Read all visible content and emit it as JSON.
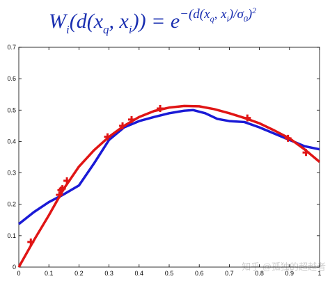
{
  "chart_data": {
    "type": "line",
    "title_parts": [
      "W",
      "i",
      "(d(x",
      "q",
      ", x",
      "i",
      ")) = e",
      "−(d(x",
      "q",
      ", x",
      "i",
      ")/σ",
      "0",
      ")",
      "2"
    ],
    "xlim": [
      0,
      1
    ],
    "xticks": [
      0,
      0.1,
      0.2,
      0.3,
      0.4,
      0.5,
      0.6,
      0.7,
      0.8,
      0.9,
      1
    ],
    "ylim": [
      0,
      0.7
    ],
    "yticks": [
      0,
      0.1,
      0.2,
      0.3,
      0.4,
      0.5,
      0.6,
      0.7
    ],
    "series": [
      {
        "color": "#1a1ad6",
        "style": "line",
        "x": [
          0,
          0.05,
          0.1,
          0.15,
          0.2,
          0.25,
          0.3,
          0.35,
          0.4,
          0.45,
          0.5,
          0.55,
          0.58,
          0.62,
          0.66,
          0.7,
          0.75,
          0.8,
          0.85,
          0.9,
          0.95,
          1
        ],
        "values": [
          0.137,
          0.175,
          0.207,
          0.232,
          0.26,
          0.33,
          0.405,
          0.445,
          0.465,
          0.478,
          0.49,
          0.498,
          0.5,
          0.49,
          0.472,
          0.465,
          0.462,
          0.445,
          0.425,
          0.405,
          0.385,
          0.375
        ]
      },
      {
        "color": "#e01515",
        "style": "line",
        "x": [
          0,
          0.05,
          0.1,
          0.15,
          0.2,
          0.25,
          0.3,
          0.35,
          0.4,
          0.45,
          0.5,
          0.55,
          0.6,
          0.65,
          0.7,
          0.75,
          0.8,
          0.85,
          0.9,
          0.95,
          1
        ],
        "values": [
          0,
          0.085,
          0.165,
          0.25,
          0.32,
          0.372,
          0.415,
          0.45,
          0.478,
          0.497,
          0.508,
          0.513,
          0.512,
          0.503,
          0.49,
          0.475,
          0.458,
          0.435,
          0.41,
          0.375,
          0.335
        ]
      },
      {
        "color": "#e01515",
        "style": "markers",
        "x": [
          0.04,
          0.135,
          0.14,
          0.145,
          0.16,
          0.295,
          0.345,
          0.375,
          0.47,
          0.76,
          0.895,
          0.955
        ],
        "values": [
          0.08,
          0.23,
          0.245,
          0.25,
          0.275,
          0.415,
          0.45,
          0.47,
          0.505,
          0.475,
          0.41,
          0.365
        ]
      }
    ],
    "watermark": "知乎 @孤独的超越者"
  }
}
